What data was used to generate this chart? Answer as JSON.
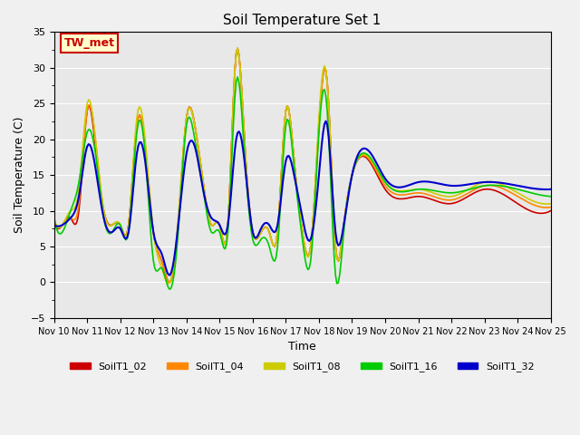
{
  "title": "Soil Temperature Set 1",
  "xlabel": "Time",
  "ylabel": "Soil Temperature (C)",
  "ylim": [
    -5,
    35
  ],
  "xlim": [
    0,
    360
  ],
  "background_color": "#e8e8e8",
  "annotation_text": "TW_met",
  "annotation_bg": "#ffffcc",
  "annotation_border": "#cc0000",
  "series": {
    "SoilT1_02": {
      "color": "#cc0000",
      "lw": 1.2
    },
    "SoilT1_04": {
      "color": "#ff8800",
      "lw": 1.2
    },
    "SoilT1_08": {
      "color": "#cccc00",
      "lw": 1.2
    },
    "SoilT1_16": {
      "color": "#00cc00",
      "lw": 1.2
    },
    "SoilT1_32": {
      "color": "#0000cc",
      "lw": 1.5
    }
  },
  "x_tick_labels": [
    "Nov 10",
    "Nov 11",
    "Nov 12",
    "Nov 13",
    "Nov 14",
    "Nov 15",
    "Nov 16",
    "Nov 17",
    "Nov 18",
    "Nov 19",
    "Nov 20",
    "Nov 21",
    "Nov 22",
    "Nov 23",
    "Nov 24",
    "Nov 25"
  ],
  "x_tick_positions": [
    0,
    24,
    48,
    72,
    96,
    120,
    144,
    168,
    192,
    216,
    240,
    264,
    288,
    312,
    336,
    360
  ]
}
